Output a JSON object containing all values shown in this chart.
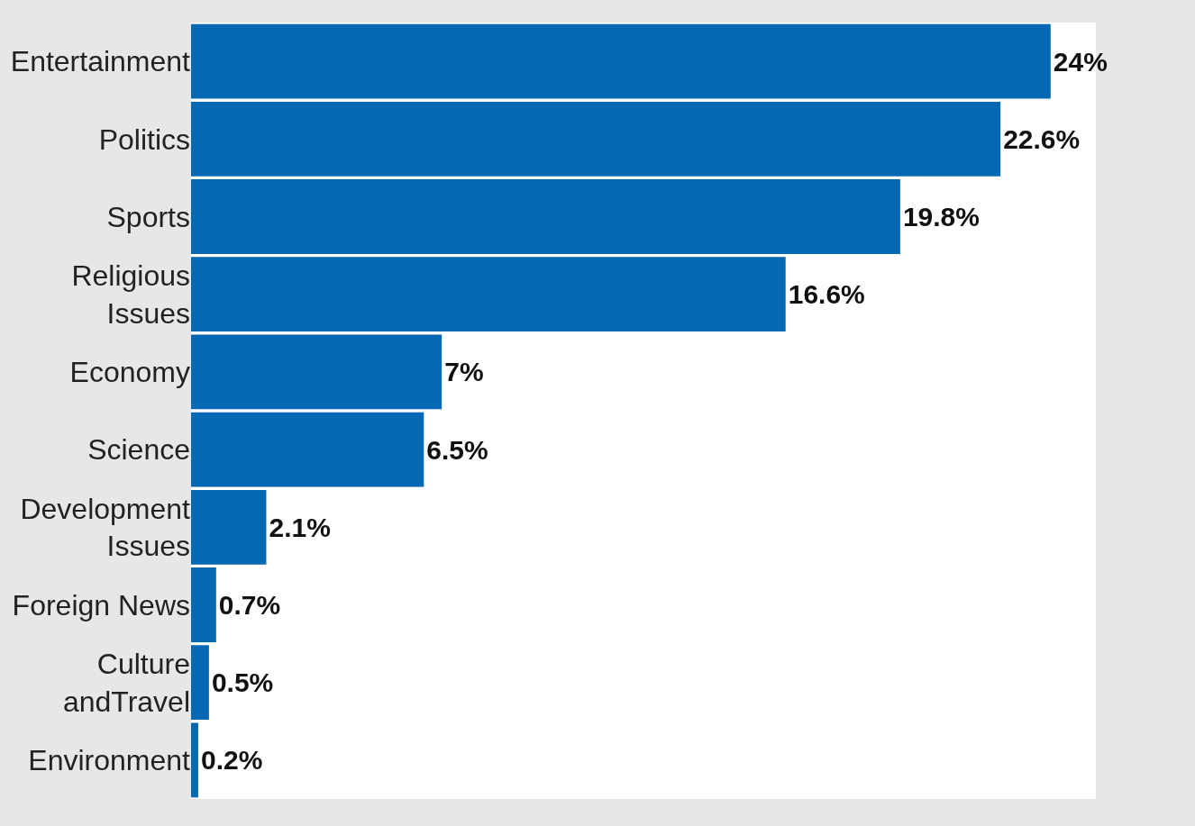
{
  "chart_data": {
    "type": "bar",
    "orientation": "horizontal",
    "categories": [
      "Entertainment",
      "Politics",
      "Sports",
      "Religious\nIssues",
      "Economy",
      "Science",
      "Development\nIssues",
      "Foreign News",
      "Culture\nandTravel",
      "Environment"
    ],
    "values": [
      24,
      22.6,
      19.8,
      16.6,
      7,
      6.5,
      2.1,
      0.7,
      0.5,
      0.2
    ],
    "value_labels": [
      "24%",
      "22.6%",
      "19.8%",
      "16.6%",
      "7%",
      "6.5%",
      "2.1%",
      "0.7%",
      "0.5%",
      "0.2%"
    ],
    "color": "#0568b3"
  }
}
